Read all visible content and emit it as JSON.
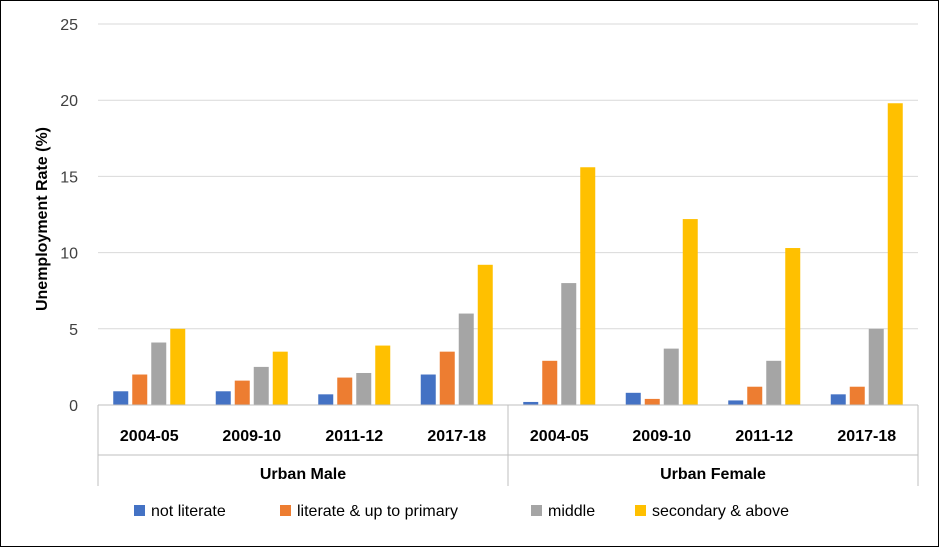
{
  "chart_data": {
    "type": "bar",
    "ylabel": "Unemployment Rate (%)",
    "ylim": [
      0,
      25
    ],
    "yticks": [
      "0",
      "5",
      "10",
      "15",
      "20",
      "25"
    ],
    "grid": true,
    "legend_position": "bottom",
    "groups": [
      {
        "label": "Urban Male",
        "categories": [
          "2004-05",
          "2009-10",
          "2011-12",
          "2017-18"
        ]
      },
      {
        "label": "Urban Female",
        "categories": [
          "2004-05",
          "2009-10",
          "2011-12",
          "2017-18"
        ]
      }
    ],
    "series": [
      {
        "name": "not  literate",
        "color": "#4472C4",
        "values": [
          0.9,
          0.9,
          0.7,
          2.0,
          0.2,
          0.8,
          0.3,
          0.7
        ]
      },
      {
        "name": "literate & up to primary",
        "color": "#ED7D31",
        "values": [
          2.0,
          1.6,
          1.8,
          3.5,
          2.9,
          0.4,
          1.2,
          1.2
        ]
      },
      {
        "name": "middle",
        "color": "#A5A5A5",
        "values": [
          4.1,
          2.5,
          2.1,
          6.0,
          8.0,
          3.7,
          2.9,
          5.0
        ]
      },
      {
        "name": "secondary & above",
        "color": "#FFC000",
        "values": [
          5.0,
          3.5,
          3.9,
          9.2,
          15.6,
          12.2,
          10.3,
          19.8
        ]
      }
    ]
  }
}
